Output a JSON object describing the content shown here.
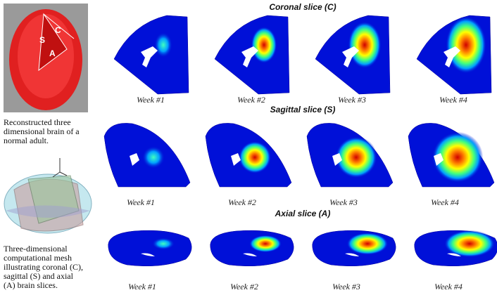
{
  "left_panel": {
    "head_labels": [
      "S",
      "C",
      "A"
    ],
    "head_caption": [
      "Reconstructed three",
      "dimensional brain of a",
      "normal adult."
    ],
    "mesh_caption": [
      "Three-dimensional",
      "computational mesh",
      "illustrating coronal (C),",
      "sagittal (S) and axial",
      "(A) brain slices."
    ]
  },
  "rows": [
    {
      "title": "Coronal slice (C)",
      "weeks": [
        "Week #1",
        "Week #2",
        "Week #3",
        "Week #4"
      ]
    },
    {
      "title": "Sagittal slice (S)",
      "weeks": [
        "Week #1",
        "Week #2",
        "Week #3",
        "Week #4"
      ]
    },
    {
      "title": "Axial slice (A)",
      "weeks": [
        "Week #1",
        "Week #2",
        "Week #3",
        "Week #4"
      ]
    }
  ]
}
